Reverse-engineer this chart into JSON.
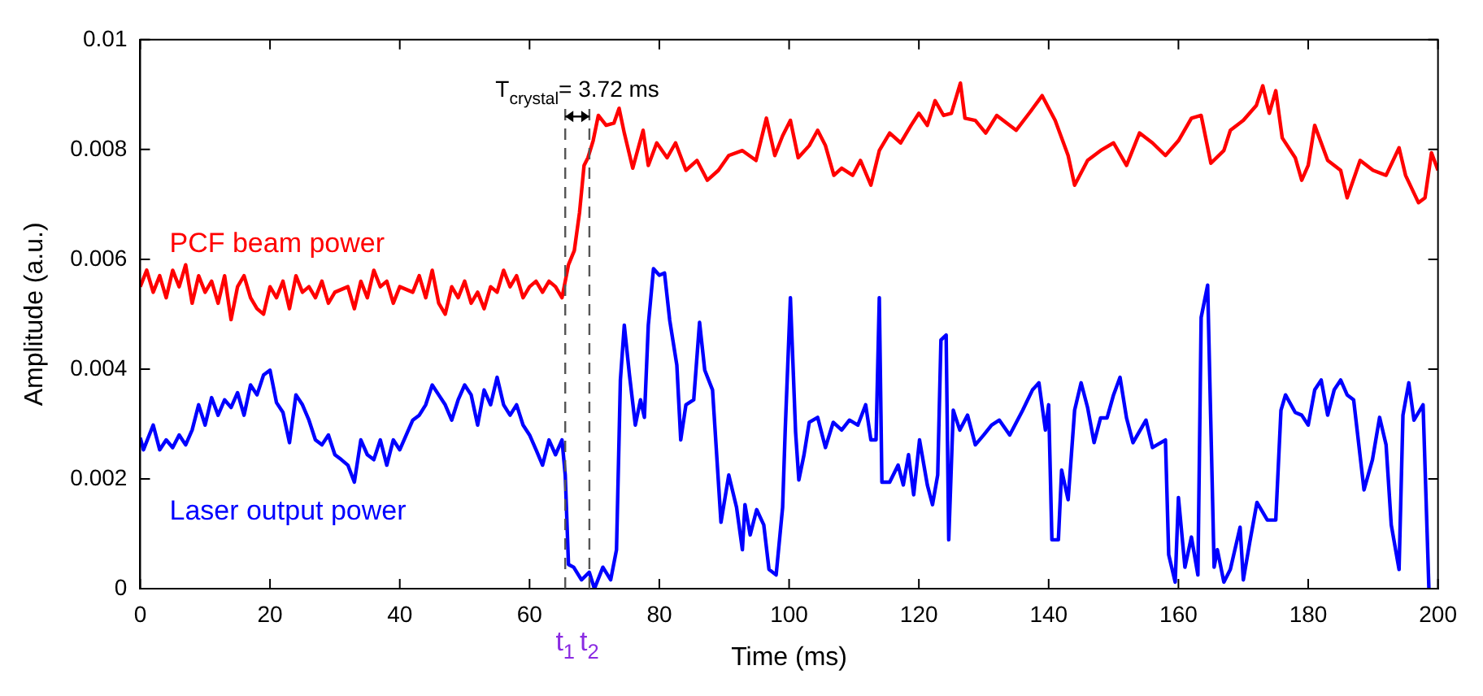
{
  "chart_data": {
    "type": "line",
    "xlabel": "Time (ms)",
    "ylabel": "Amplitude (a.u.)",
    "xlim": [
      0,
      200
    ],
    "xticks": [
      0,
      20,
      40,
      60,
      80,
      100,
      120,
      140,
      160,
      180,
      200
    ],
    "ylim": [
      0,
      0.01
    ],
    "yticks": [
      0,
      0.002,
      0.004,
      0.006,
      0.008,
      0.01
    ],
    "grid": false,
    "legend": false,
    "line_style": "solid",
    "annotations": [
      "T$_{crystal}$= 3.72 ms"
    ],
    "ref_lines": [
      {
        "axis": "x",
        "value": 65.5,
        "label": "t$_{1}$",
        "color": "#555555",
        "line_style": "dashed"
      },
      {
        "axis": "x",
        "value": 69.22,
        "label": "t$_{2}$",
        "color": "#555555",
        "line_style": "dashed"
      }
    ],
    "series": [
      {
        "name": "PCF beam power",
        "color": "#ff0000",
        "x": [
          0,
          1,
          2,
          3,
          4,
          5,
          6,
          7,
          8,
          9,
          10,
          11,
          12,
          13,
          14,
          15,
          16,
          17,
          18,
          19,
          20,
          21,
          22,
          23,
          24,
          25,
          26,
          27,
          28,
          29,
          30,
          32,
          33,
          34,
          35,
          36,
          37,
          38,
          39,
          40,
          42,
          43,
          44,
          45,
          46,
          47,
          48,
          49,
          50,
          51,
          52,
          53,
          54,
          55,
          56,
          57,
          58,
          59,
          60,
          61,
          62,
          63,
          64,
          65,
          66,
          66.9,
          67.7,
          68.4,
          69,
          69.8,
          70.6,
          71.8,
          73,
          73.8,
          74.6,
          75.9,
          77.5,
          78.3,
          79.6,
          81.2,
          82.5,
          84.1,
          85.8,
          87.4,
          89.1,
          90.7,
          92.8,
          94.9,
          96.5,
          97.8,
          99,
          100.2,
          101.4,
          103.1,
          104.4,
          105.6,
          106.9,
          108.1,
          109.8,
          111,
          112.6,
          113.9,
          115.5,
          117.2,
          118.8,
          120,
          121.3,
          122.5,
          123.8,
          125,
          126.4,
          127.1,
          128.7,
          130.3,
          132,
          135,
          137,
          139,
          141,
          143,
          144,
          146,
          148,
          150,
          152,
          154,
          156,
          158,
          160,
          162,
          163.5,
          165,
          167,
          168,
          170,
          172,
          173,
          174,
          175,
          176,
          178,
          179,
          180,
          181,
          183,
          185,
          186,
          188,
          190,
          192,
          194,
          195,
          197,
          198,
          199,
          200
        ],
        "values": [
          0.0055,
          0.0058,
          0.0054,
          0.0057,
          0.0053,
          0.0058,
          0.0055,
          0.0059,
          0.0052,
          0.0057,
          0.0054,
          0.0056,
          0.0052,
          0.0057,
          0.0049,
          0.0055,
          0.0057,
          0.0053,
          0.0051,
          0.005,
          0.0055,
          0.0053,
          0.0056,
          0.0051,
          0.0057,
          0.0054,
          0.0055,
          0.0053,
          0.0056,
          0.0052,
          0.0054,
          0.0055,
          0.0051,
          0.0056,
          0.0053,
          0.0058,
          0.0055,
          0.0056,
          0.0052,
          0.0055,
          0.0054,
          0.0057,
          0.0053,
          0.0058,
          0.0052,
          0.005,
          0.0055,
          0.0053,
          0.0056,
          0.0052,
          0.0054,
          0.0051,
          0.0055,
          0.0054,
          0.0058,
          0.0055,
          0.0057,
          0.0053,
          0.0055,
          0.0056,
          0.0054,
          0.0056,
          0.0055,
          0.0053,
          0.0059,
          0.00616,
          0.00685,
          0.00771,
          0.00785,
          0.00816,
          0.00862,
          0.00844,
          0.00848,
          0.00875,
          0.0083,
          0.00766,
          0.00835,
          0.00771,
          0.00812,
          0.00785,
          0.00812,
          0.00762,
          0.0078,
          0.00744,
          0.00762,
          0.00789,
          0.00798,
          0.0078,
          0.00857,
          0.00789,
          0.00825,
          0.00853,
          0.00785,
          0.00807,
          0.00835,
          0.00807,
          0.00753,
          0.00766,
          0.00753,
          0.0078,
          0.00735,
          0.00798,
          0.0083,
          0.00812,
          0.00844,
          0.00866,
          0.00844,
          0.00889,
          0.00862,
          0.00866,
          0.00921,
          0.00857,
          0.00853,
          0.0083,
          0.00862,
          0.00835,
          0.00866,
          0.00898,
          0.00853,
          0.00789,
          0.00735,
          0.0078,
          0.00798,
          0.00812,
          0.00771,
          0.0083,
          0.00812,
          0.00789,
          0.00816,
          0.00857,
          0.00862,
          0.00775,
          0.00798,
          0.00835,
          0.00853,
          0.0088,
          0.00916,
          0.00866,
          0.00907,
          0.00821,
          0.00785,
          0.00744,
          0.00771,
          0.00844,
          0.0078,
          0.00762,
          0.00712,
          0.0078,
          0.00762,
          0.00753,
          0.00803,
          0.00753,
          0.00703,
          0.00712,
          0.00794,
          0.00762
        ]
      },
      {
        "name": "Laser output power",
        "color": "#0000ff",
        "x": [
          0,
          0.5,
          2,
          3,
          4,
          5,
          6,
          7,
          8,
          9,
          10,
          11,
          12,
          13,
          14,
          15,
          16,
          17,
          18,
          19,
          20,
          21,
          22,
          23,
          24,
          25,
          26,
          27,
          28,
          29,
          30,
          31,
          32,
          33,
          34,
          35,
          36,
          37,
          38,
          39,
          40,
          41,
          42,
          43,
          44,
          45,
          46,
          47,
          48,
          49,
          50,
          51,
          52,
          53,
          54,
          55,
          56,
          57,
          58,
          59,
          60,
          61,
          62,
          63,
          64,
          65,
          65.5,
          66,
          66.8,
          68,
          69.2,
          70,
          71.3,
          72.5,
          73.4,
          74,
          74.6,
          75.4,
          76.3,
          77.1,
          77.7,
          78.3,
          79.1,
          80,
          80.8,
          81.6,
          82.7,
          83.3,
          84.1,
          85.3,
          86.2,
          87,
          88.2,
          89.5,
          90.7,
          91.9,
          92.8,
          93.2,
          94,
          95,
          96.1,
          96.9,
          98,
          99,
          99.4,
          100.2,
          101,
          101.5,
          102.3,
          103.1,
          104.4,
          105.6,
          106.8,
          108.1,
          109.3,
          110.6,
          111.8,
          112.6,
          113.4,
          113.9,
          114.3,
          115.5,
          116.8,
          117.6,
          118.4,
          119.2,
          120.1,
          121.3,
          122.1,
          122.9,
          123.4,
          124.2,
          124.6,
          125.3,
          126.3,
          127.5,
          128.7,
          130,
          131.2,
          132.4,
          134,
          136,
          137.5,
          138.5,
          139.5,
          140,
          140.5,
          141.5,
          142,
          143,
          144,
          145,
          146,
          147,
          148,
          149,
          150,
          151,
          152,
          153,
          155,
          156,
          158,
          158.5,
          159.5,
          160,
          161,
          162,
          163,
          163.5,
          164.5,
          165.5,
          166,
          167,
          168,
          169.5,
          170,
          171,
          172.1,
          173.7,
          175,
          175.8,
          176.5,
          178,
          179,
          180,
          181,
          182,
          183,
          184,
          185,
          186,
          187,
          188.6,
          189.9,
          191,
          192,
          192.8,
          194,
          194.6,
          195.5,
          196.3,
          197.7,
          198.6
        ],
        "values": [
          0.00275,
          0.00253,
          0.00298,
          0.00253,
          0.00271,
          0.00257,
          0.0028,
          0.00262,
          0.00289,
          0.00335,
          0.00298,
          0.00348,
          0.00316,
          0.00344,
          0.0033,
          0.00357,
          0.00316,
          0.00371,
          0.00353,
          0.00389,
          0.00398,
          0.00339,
          0.00321,
          0.00266,
          0.00353,
          0.00335,
          0.00307,
          0.00271,
          0.00262,
          0.0028,
          0.00244,
          0.00235,
          0.00225,
          0.00194,
          0.00271,
          0.00244,
          0.00235,
          0.00271,
          0.00225,
          0.00271,
          0.00253,
          0.0028,
          0.00307,
          0.00316,
          0.00335,
          0.00371,
          0.00353,
          0.00335,
          0.00307,
          0.00344,
          0.00371,
          0.00353,
          0.00298,
          0.00362,
          0.00335,
          0.00385,
          0.00335,
          0.00316,
          0.00335,
          0.00298,
          0.0028,
          0.00253,
          0.00225,
          0.00271,
          0.00244,
          0.00271,
          0.00207,
          0.00044,
          0.00039,
          0.00016,
          0.0003,
          0,
          0.00039,
          0.00016,
          0.00071,
          0.0038,
          0.0048,
          0.00389,
          0.00298,
          0.00344,
          0.00312,
          0.0048,
          0.00583,
          0.00571,
          0.00575,
          0.00489,
          0.00407,
          0.00271,
          0.00335,
          0.00344,
          0.00485,
          0.00398,
          0.00362,
          0.00121,
          0.00207,
          0.00148,
          0.00071,
          0.00153,
          0.00098,
          0.00144,
          0.00116,
          0.00035,
          0.00025,
          0.00148,
          0.00289,
          0.0053,
          0.00285,
          0.00198,
          0.00244,
          0.00303,
          0.00312,
          0.00257,
          0.00303,
          0.00289,
          0.00307,
          0.00298,
          0.00335,
          0.00271,
          0.00271,
          0.0053,
          0.00194,
          0.00194,
          0.00225,
          0.00189,
          0.00244,
          0.00171,
          0.00271,
          0.00189,
          0.00153,
          0.00207,
          0.00453,
          0.00462,
          0.00089,
          0.00325,
          0.00289,
          0.00316,
          0.00262,
          0.0028,
          0.00298,
          0.00307,
          0.0028,
          0.00325,
          0.00362,
          0.00375,
          0.00289,
          0.00335,
          0.00089,
          0.00089,
          0.00216,
          0.00162,
          0.00325,
          0.00375,
          0.0033,
          0.00266,
          0.00311,
          0.00311,
          0.00353,
          0.00385,
          0.00311,
          0.00266,
          0.00307,
          0.00257,
          0.00271,
          0.00062,
          0.00012,
          0.00166,
          0.00039,
          0.00094,
          0.00025,
          0.00494,
          0.00553,
          0.00039,
          0.00071,
          0.00012,
          0.00035,
          0.00112,
          0.00016,
          0.00085,
          0.00157,
          0.00125,
          0.00125,
          0.00325,
          0.00353,
          0.00321,
          0.00316,
          0.00298,
          0.00362,
          0.0038,
          0.00316,
          0.00362,
          0.0038,
          0.00353,
          0.00344,
          0.0018,
          0.00235,
          0.00312,
          0.00262,
          0.00116,
          0.00035,
          0.00316,
          0.00375,
          0.00307,
          0.00335,
          0
        ]
      }
    ]
  }
}
